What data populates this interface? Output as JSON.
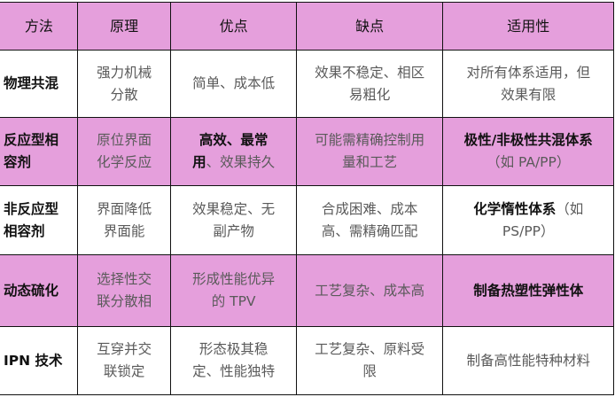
{
  "colors": {
    "header_row": "#e59fdc",
    "highlight_row": "#e59fdc",
    "body_text": "#5a5a5a",
    "bold_text": "#111111"
  },
  "table": {
    "headers": [
      "方法",
      "原理",
      "优点",
      "缺点",
      "适用性"
    ],
    "rows": [
      {
        "highlight": false,
        "cells": [
          [
            [
              {
                "t": "物理共混",
                "b": true
              }
            ]
          ],
          [
            [
              {
                "t": "强力机械"
              }
            ],
            [
              {
                "t": "分散"
              }
            ]
          ],
          [
            [
              {
                "t": "简单、成本低"
              }
            ]
          ],
          [
            [
              {
                "t": "效果不稳定、相区"
              }
            ],
            [
              {
                "t": "易粗化"
              }
            ]
          ],
          [
            [
              {
                "t": "对所有体系适用，但"
              }
            ],
            [
              {
                "t": "效果有限"
              }
            ]
          ]
        ]
      },
      {
        "highlight": true,
        "cells": [
          [
            [
              {
                "t": "反应型相",
                "b": true
              }
            ],
            [
              {
                "t": "容剂",
                "b": true
              }
            ]
          ],
          [
            [
              {
                "t": "原位界面"
              }
            ],
            [
              {
                "t": "化学反应"
              }
            ]
          ],
          [
            [
              {
                "t": "高效、最常",
                "b": true
              }
            ],
            [
              {
                "t": "用",
                "b": true
              },
              {
                "t": "、效果持久"
              }
            ]
          ],
          [
            [
              {
                "t": "可能需精确控制用"
              }
            ],
            [
              {
                "t": "量和工艺"
              }
            ]
          ],
          [
            [
              {
                "t": "极性/非极性共混体系",
                "b": true
              }
            ],
            [
              {
                "t": "（如 PA/PP）"
              }
            ]
          ]
        ]
      },
      {
        "highlight": false,
        "cells": [
          [
            [
              {
                "t": "非反应型",
                "b": true
              }
            ],
            [
              {
                "t": "相容剂",
                "b": true
              }
            ]
          ],
          [
            [
              {
                "t": "界面降低"
              }
            ],
            [
              {
                "t": "界面能"
              }
            ]
          ],
          [
            [
              {
                "t": "效果稳定、无"
              }
            ],
            [
              {
                "t": "副产物"
              }
            ]
          ],
          [
            [
              {
                "t": "合成困难、成本"
              }
            ],
            [
              {
                "t": "高、需精确匹配"
              }
            ]
          ],
          [
            [
              {
                "t": "化学惰性体系",
                "b": true
              },
              {
                "t": "（如"
              }
            ],
            [
              {
                "t": "PS/PP）"
              }
            ]
          ]
        ]
      },
      {
        "highlight": true,
        "cells": [
          [
            [
              {
                "t": "动态硫化",
                "b": true
              }
            ]
          ],
          [
            [
              {
                "t": "选择性交"
              }
            ],
            [
              {
                "t": "联分散相"
              }
            ]
          ],
          [
            [
              {
                "t": "形成性能优异"
              }
            ],
            [
              {
                "t": "的 TPV"
              }
            ]
          ],
          [
            [
              {
                "t": "工艺复杂、成本高"
              }
            ]
          ],
          [
            [
              {
                "t": "制备热塑性弹性体",
                "b": true
              }
            ]
          ]
        ]
      },
      {
        "highlight": false,
        "cells": [
          [
            [
              {
                "t": "IPN 技术",
                "b": true
              }
            ]
          ],
          [
            [
              {
                "t": "互穿并交"
              }
            ],
            [
              {
                "t": "联锁定"
              }
            ]
          ],
          [
            [
              {
                "t": "形态极其稳"
              }
            ],
            [
              {
                "t": "定、性能独特"
              }
            ]
          ],
          [
            [
              {
                "t": "工艺复杂、原料受"
              }
            ],
            [
              {
                "t": "限"
              }
            ]
          ],
          [
            [
              {
                "t": "制备高性能特种材料"
              }
            ]
          ]
        ]
      }
    ]
  }
}
